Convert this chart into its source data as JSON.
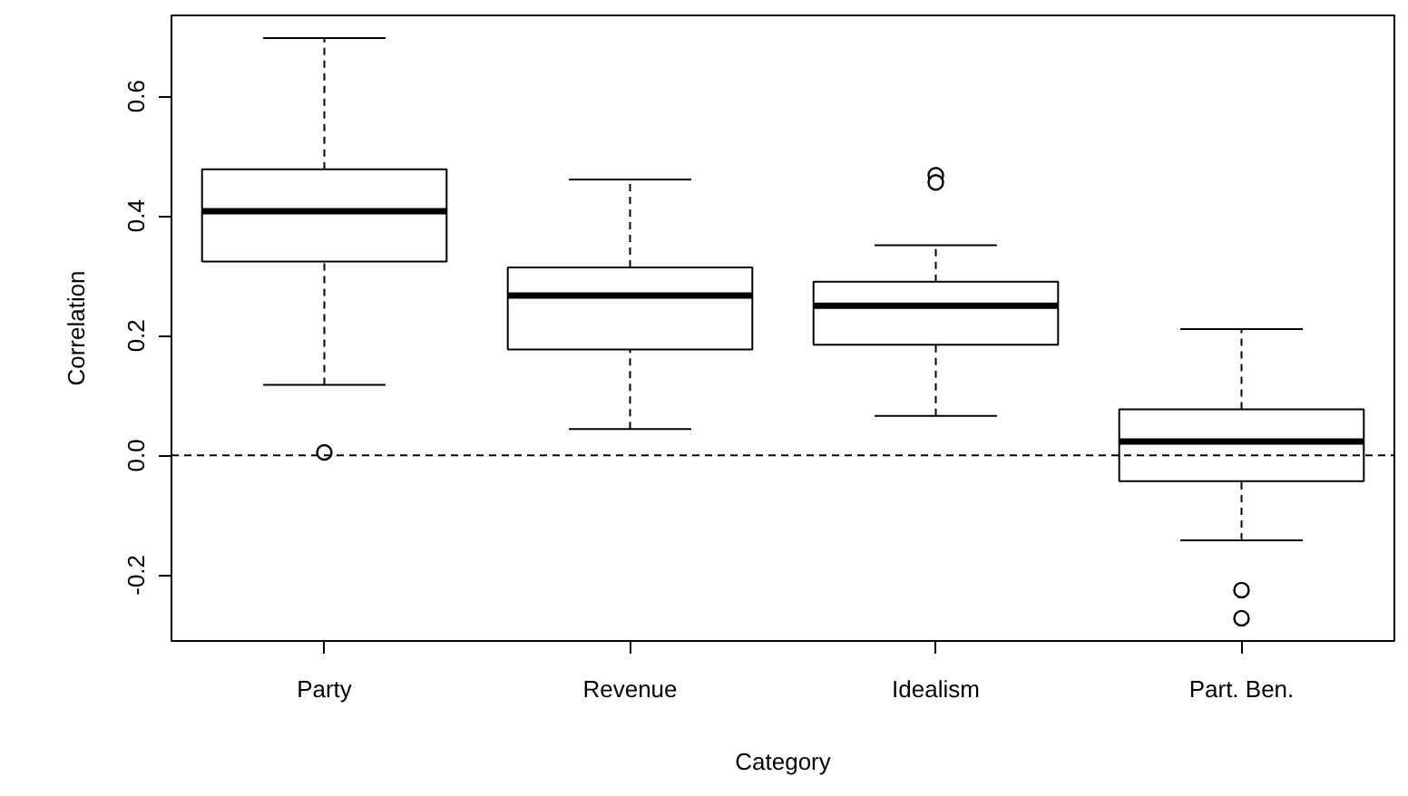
{
  "chart_data": {
    "type": "box",
    "categories": [
      "Party",
      "Revenue",
      "Idealism",
      "Part. Ben."
    ],
    "boxes": [
      {
        "low": 0.118,
        "q1": 0.324,
        "median": 0.408,
        "q3": 0.478,
        "high": 0.697,
        "outliers": [
          0.005
        ]
      },
      {
        "low": 0.044,
        "q1": 0.177,
        "median": 0.267,
        "q3": 0.314,
        "high": 0.461
      },
      {
        "low": 0.066,
        "q1": 0.185,
        "median": 0.25,
        "q3": 0.29,
        "high": 0.351,
        "outliers": [
          0.468,
          0.456
        ]
      },
      {
        "low": -0.142,
        "q1": -0.043,
        "median": 0.023,
        "q3": 0.077,
        "high": 0.211,
        "outliers": [
          -0.225,
          -0.272
        ]
      }
    ],
    "xlabel": "Category",
    "ylabel": "Correlation",
    "ylim": [
      -0.31,
      0.735
    ],
    "yticks": [
      -0.2,
      {
        "value": 0,
        "label": "0.0"
      },
      0.2,
      0.4,
      0.6
    ],
    "ref_lines": [
      {
        "axis": "y",
        "value": 0,
        "line_style": "dashed"
      }
    ],
    "marker": "circle",
    "grid": false
  }
}
